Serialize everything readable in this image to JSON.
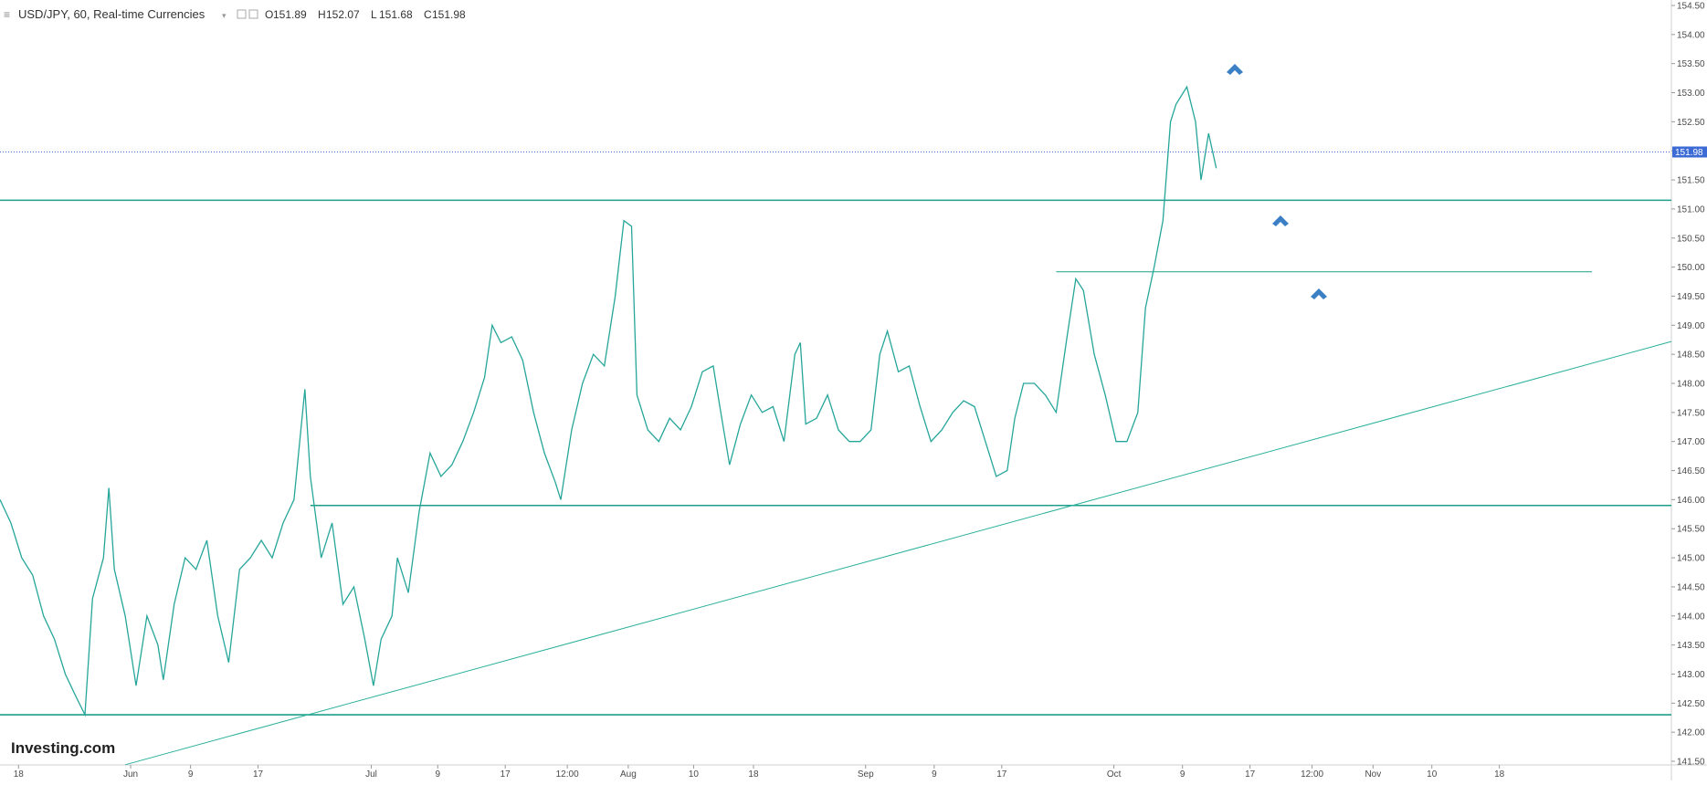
{
  "chart_data": {
    "type": "line",
    "title": "USD/JPY, 60, Real-time Currencies",
    "ohlc": [
      {
        "label": "O",
        "value": 151.89
      },
      {
        "label": "H",
        "value": 152.07
      },
      {
        "label": "L",
        "value": 151.68
      },
      {
        "label": "C",
        "value": 151.98
      }
    ],
    "watermark": "Investing.com",
    "color": "#26a69a",
    "x": [
      0,
      10,
      20,
      30,
      40,
      50,
      60,
      70,
      78,
      85,
      95,
      100,
      105,
      115,
      125,
      135,
      145,
      150,
      160,
      170,
      180,
      190,
      200,
      210,
      220,
      230,
      240,
      250,
      260,
      270,
      280,
      285,
      295,
      305,
      315,
      325,
      335,
      343,
      350,
      360,
      365,
      375,
      385,
      395,
      405,
      415,
      425,
      435,
      445,
      452,
      460,
      470,
      480,
      490,
      500,
      510,
      515,
      525,
      535,
      545,
      555,
      565,
      573,
      580,
      585,
      595,
      605,
      615,
      625,
      635,
      645,
      655,
      662,
      670,
      680,
      690,
      700,
      710,
      720,
      730,
      735,
      740,
      750,
      760,
      770,
      780,
      790,
      800,
      808,
      815,
      825,
      835,
      845,
      855,
      865,
      875,
      885,
      895,
      905,
      915,
      925,
      932,
      940,
      950,
      960,
      970,
      980,
      988,
      995,
      1005,
      1015,
      1025,
      1035,
      1045,
      1052,
      1060,
      1068,
      1075,
      1080,
      1090,
      1098,
      1103,
      1110,
      1117
    ],
    "values": [
      146.0,
      145.6,
      145.0,
      144.7,
      144.0,
      143.6,
      143.0,
      142.6,
      142.3,
      144.3,
      145.0,
      146.2,
      144.8,
      144.0,
      142.8,
      144.0,
      143.5,
      142.9,
      144.2,
      145.0,
      144.8,
      145.3,
      144.0,
      143.2,
      144.8,
      145.0,
      145.3,
      145.0,
      145.6,
      146.0,
      147.9,
      146.4,
      145.0,
      145.6,
      144.2,
      144.5,
      143.6,
      142.8,
      143.6,
      144.0,
      145.0,
      144.4,
      145.8,
      146.8,
      146.4,
      146.6,
      147.0,
      147.5,
      148.1,
      149.0,
      148.7,
      148.8,
      148.4,
      147.5,
      146.8,
      146.3,
      146.0,
      147.2,
      148.0,
      148.5,
      148.3,
      149.5,
      150.8,
      150.7,
      147.8,
      147.2,
      147.0,
      147.4,
      147.2,
      147.6,
      148.2,
      148.3,
      147.5,
      146.6,
      147.3,
      147.8,
      147.5,
      147.6,
      147.0,
      148.5,
      148.7,
      147.3,
      147.4,
      147.8,
      147.2,
      147.0,
      147.0,
      147.2,
      148.5,
      148.9,
      148.2,
      148.3,
      147.6,
      147.0,
      147.2,
      147.5,
      147.7,
      147.6,
      147.0,
      146.4,
      146.5,
      147.4,
      148.0,
      148.0,
      147.8,
      147.5,
      148.8,
      149.8,
      149.6,
      148.5,
      147.8,
      147.0,
      147.0,
      147.5,
      149.3,
      150.0,
      150.8,
      152.5,
      152.8,
      153.1,
      152.5,
      151.5,
      152.3,
      151.7
    ],
    "levels": [
      {
        "value": 151.15,
        "x": [
          0,
          1535
        ]
      },
      {
        "value": 149.92,
        "x": [
          970,
          1462
        ]
      },
      {
        "value": 145.9,
        "x": [
          285,
          1535
        ]
      },
      {
        "value": 142.3,
        "x": [
          0,
          1535
        ]
      }
    ],
    "trendline": {
      "x": [
        115,
        1535
      ],
      "values": [
        141.44,
        148.72
      ]
    },
    "xlim": [
      0,
      1535
    ],
    "ylim": [
      141.5,
      154.5
    ],
    "xticks": [
      {
        "value": 17,
        "label": "18"
      },
      {
        "value": 120,
        "label": "Jun"
      },
      {
        "value": 175,
        "label": "9"
      },
      {
        "value": 237,
        "label": "17"
      },
      {
        "value": 341,
        "label": "Jul"
      },
      {
        "value": 402,
        "label": "9"
      },
      {
        "value": 464,
        "label": "17"
      },
      {
        "value": 521,
        "label": "12:00"
      },
      {
        "value": 577,
        "label": "Aug"
      },
      {
        "value": 637,
        "label": "10"
      },
      {
        "value": 692,
        "label": "18"
      },
      {
        "value": 795,
        "label": "Sep"
      },
      {
        "value": 858,
        "label": "9"
      },
      {
        "value": 920,
        "label": "17"
      },
      {
        "value": 1023,
        "label": "Oct"
      },
      {
        "value": 1086,
        "label": "9"
      },
      {
        "value": 1148,
        "label": "17"
      },
      {
        "value": 1205,
        "label": "12:00"
      },
      {
        "value": 1261,
        "label": "Nov"
      },
      {
        "value": 1315,
        "label": "10"
      },
      {
        "value": 1377,
        "label": "18"
      }
    ],
    "yticks": [
      {
        "value": 141.5,
        "label": "141.50"
      },
      {
        "value": 142,
        "label": "142.00"
      },
      {
        "value": 142.5,
        "label": "142.50"
      },
      {
        "value": 143,
        "label": "143.00"
      },
      {
        "value": 143.5,
        "label": "143.50"
      },
      {
        "value": 144,
        "label": "144.00"
      },
      {
        "value": 144.5,
        "label": "144.50"
      },
      {
        "value": 145,
        "label": "145.00"
      },
      {
        "value": 145.5,
        "label": "145.50"
      },
      {
        "value": 146,
        "label": "146.00"
      },
      {
        "value": 146.5,
        "label": "146.50"
      },
      {
        "value": 147,
        "label": "147.00"
      },
      {
        "value": 147.5,
        "label": "147.50"
      },
      {
        "value": 148,
        "label": "148.00"
      },
      {
        "value": 148.5,
        "label": "148.50"
      },
      {
        "value": 149,
        "label": "149.00"
      },
      {
        "value": 149.5,
        "label": "149.50"
      },
      {
        "value": 150,
        "label": "150.00"
      },
      {
        "value": 150.5,
        "label": "150.50"
      },
      {
        "value": 151,
        "label": "151.00"
      },
      {
        "value": 151.5,
        "label": "151.50"
      },
      {
        "value": 152,
        "label": "152.00"
      },
      {
        "value": 152.5,
        "label": "152.50"
      },
      {
        "value": 153,
        "label": "153.00"
      },
      {
        "value": 153.5,
        "label": "153.50"
      },
      {
        "value": 154,
        "label": "154.00"
      },
      {
        "value": 154.5,
        "label": "154.50"
      }
    ]
  }
}
